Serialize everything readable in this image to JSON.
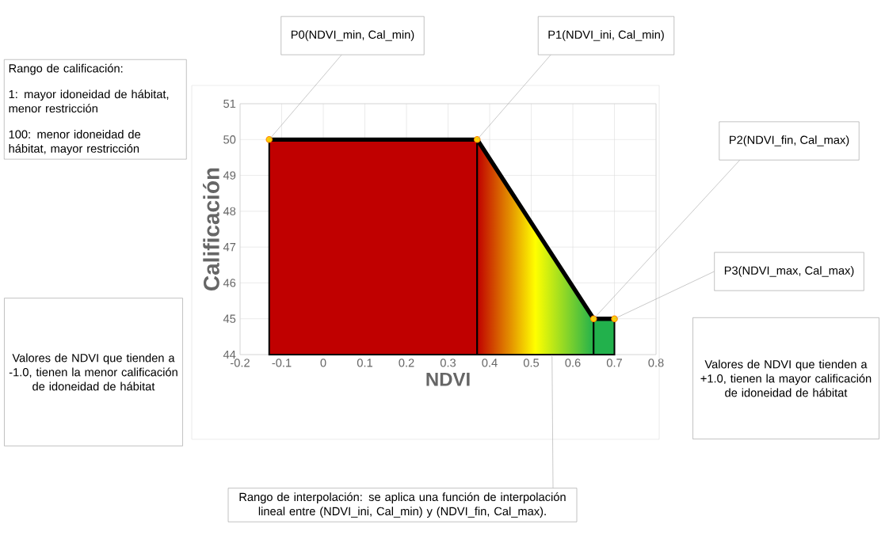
{
  "chart_data": {
    "type": "area",
    "xlabel": "NDVI",
    "ylabel": "Calificación",
    "x": [
      -0.13,
      0.37,
      0.65,
      0.7
    ],
    "series": [
      {
        "color": "#000000",
        "colors": [
          "#c00000",
          "#c00000",
          "#22b14c",
          "#22b14c"
        ],
        "values": [
          50,
          50,
          45,
          45
        ]
      }
    ],
    "marker": "circle",
    "grid": true,
    "xlim": [
      -0.2,
      0.8
    ],
    "xticks": [
      -0.2,
      -0.1,
      0,
      0.1,
      0.2,
      0.3,
      0.4,
      0.5,
      0.6,
      0.7,
      0.8
    ],
    "ylim": [
      44,
      51
    ],
    "yticks": [
      44,
      45,
      46,
      47,
      48,
      49,
      50,
      51
    ],
    "annotations": [
      {
        "text": "P0(NDVI_min, Cal_min)",
        "x": -0.13,
        "y": 50
      },
      {
        "text": "P1(NDVI_ini, Cal_min)",
        "x": 0.37,
        "y": 50
      },
      {
        "text": "P2(NDVI_fin, Cal_max)",
        "x": 0.65,
        "y": 45
      },
      {
        "text": "P3(NDVI_max, Cal_max)",
        "x": 0.7,
        "y": 45
      },
      "Rango de calificación:",
      "1: mayor idoneidad de hábitat, menor restricción",
      "100: menor idoneidad de hábitat, mayor restricción",
      "Valores de NDVI que tienden a -1.0, tienen la menor calificación de idoneidad de hábitat",
      "Valores de NDVI que tienden a +1.0, tienen la mayor calificación de idoneidad de hábitat",
      {
        "text": "Rango de interpolación:  se aplica una función de interpolación lineal entre (NDVI_ini, Cal_min) y (NDVI_fin, Cal_max).",
        "x": 0.55,
        "y": 44
      }
    ]
  }
}
